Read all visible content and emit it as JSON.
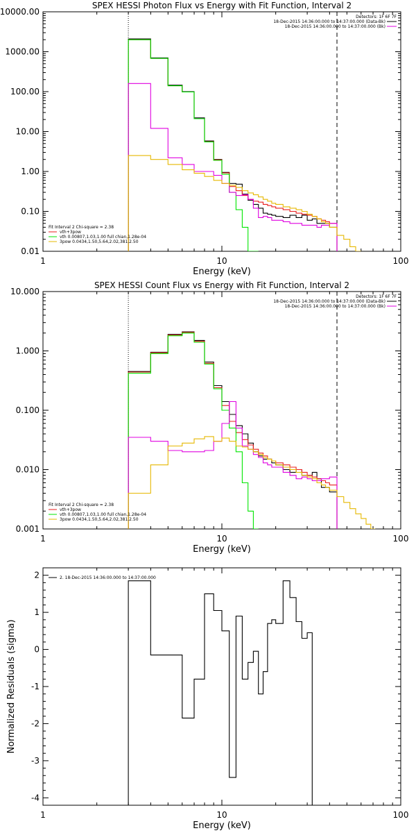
{
  "chart_data": [
    {
      "type": "line",
      "title": "SPEX HESSI Photon Flux vs Energy with Fit Function, Interval 2",
      "xlabel": "Energy (keV)",
      "ylabel": "",
      "xscale": "log",
      "yscale": "log",
      "xlim": [
        1,
        100
      ],
      "ylim": [
        0.01,
        10000
      ],
      "xticks": [
        "1",
        "10",
        "100"
      ],
      "yticks": [
        "0.01",
        "0.10",
        "1.00",
        "10.00",
        "100.00",
        "1000.00",
        "10000.00"
      ],
      "vlines": [
        3,
        44
      ],
      "legend_right": [
        "Detectors: 1F 6F 7F",
        "18-Dec-2015 14:36:00.000 to 14:37:00.000 (Data-Bk)",
        "18-Dec-2015 14:36:00.000 to 14:37:00.000 (Bk)"
      ],
      "legend_left": [
        "Fit Interval 2   Chi-square = 2.38",
        "vth+3pow",
        "vth 0.00807,1.03,1.00  full chian,1.28e-04",
        "3pow 0.0434,1.50,5.64,2.02,381.2.50"
      ],
      "edges": [
        3,
        4,
        5,
        6,
        7,
        8,
        9,
        10,
        11,
        12,
        13,
        14,
        15,
        16,
        17,
        18,
        19,
        20,
        22,
        24,
        26,
        28,
        30,
        32,
        34,
        36,
        38,
        40,
        44,
        48,
        52,
        56,
        60
      ],
      "series": [
        {
          "color": "#000000",
          "values": [
            2100,
            700,
            145,
            100,
            22,
            5.8,
            2,
            0.95,
            0.5,
            0.48,
            0.27,
            0.19,
            0.15,
            0.12,
            0.09,
            0.085,
            0.08,
            0.075,
            0.07,
            0.08,
            0.07,
            0.08,
            0.06,
            0.065,
            0.05,
            0.05,
            0.05,
            0.04
          ]
        },
        {
          "color": "#e81c1c",
          "values": [
            2000,
            680,
            140,
            98,
            21,
            5.6,
            1.95,
            0.92,
            0.42,
            0.33,
            0.25,
            0.2,
            0.18,
            0.17,
            0.15,
            0.14,
            0.13,
            0.12,
            0.11,
            0.1,
            0.09,
            0.085,
            0.08,
            0.075,
            0.065,
            0.06,
            0.055,
            0.05
          ]
        },
        {
          "color": "#00e600",
          "values": [
            2000,
            680,
            140,
            98,
            21,
            5.5,
            1.9,
            0.85,
            0.3,
            0.11,
            0.04,
            0.01,
            0.002
          ]
        },
        {
          "color": "#e000e0",
          "values": [
            160,
            12,
            2.2,
            1.5,
            1.0,
            1.0,
            0.8,
            0.5,
            0.3,
            0.25,
            0.26,
            0.2,
            0.12,
            0.07,
            0.075,
            0.07,
            0.06,
            0.06,
            0.055,
            0.05,
            0.05,
            0.045,
            0.045,
            0.045,
            0.04,
            0.045,
            0.045,
            0.05
          ]
        },
        {
          "color": "#e6b800",
          "values": [
            2.5,
            2.0,
            1.5,
            1.1,
            0.9,
            0.75,
            0.6,
            0.5,
            0.45,
            0.4,
            0.33,
            0.29,
            0.26,
            0.23,
            0.2,
            0.18,
            0.16,
            0.15,
            0.13,
            0.12,
            0.11,
            0.1,
            0.085,
            0.075,
            0.065,
            0.055,
            0.05,
            0.04,
            0.025,
            0.02,
            0.013,
            0.01
          ]
        }
      ]
    },
    {
      "type": "line",
      "title": "SPEX HESSI Count Flux vs Energy with Fit Function, Interval 2",
      "xlabel": "Energy (keV)",
      "ylabel": "",
      "xscale": "log",
      "yscale": "log",
      "xlim": [
        1,
        100
      ],
      "ylim": [
        0.001,
        10
      ],
      "xticks": [
        "1",
        "10",
        "100"
      ],
      "yticks": [
        "0.001",
        "0.010",
        "0.100",
        "1.000",
        "10.000"
      ],
      "vlines": [
        3,
        44
      ],
      "legend_right": [
        "Detectors: 1F 6F 7F",
        "18-Dec-2015 14:36:00.000 to 14:37:00.000 (Data-Bk)",
        "18-Dec-2015 14:36:00.000 to 14:37:00.000 (Bk)"
      ],
      "legend_left": [
        "Fit Interval 2   Chi-square = 2.38",
        "vth+3pow",
        "vth 0.00807,1.03,1.00  full chian,1.28e-04",
        "3pow 0.0434,1.50,5.64,2.02,381.2.50"
      ],
      "edges": [
        3,
        4,
        5,
        6,
        7,
        8,
        9,
        10,
        11,
        12,
        13,
        14,
        15,
        16,
        17,
        18,
        19,
        20,
        22,
        24,
        26,
        28,
        30,
        32,
        34,
        36,
        38,
        40,
        44,
        48,
        52,
        56,
        60,
        64,
        68,
        72,
        76,
        80,
        84
      ],
      "series": [
        {
          "color": "#000000",
          "values": [
            0.45,
            0.95,
            1.9,
            2.1,
            1.5,
            0.65,
            0.26,
            0.14,
            0.085,
            0.055,
            0.04,
            0.028,
            0.02,
            0.017,
            0.015,
            0.015,
            0.013,
            0.012,
            0.01,
            0.009,
            0.01,
            0.008,
            0.008,
            0.009,
            0.007,
            0.005,
            0.005,
            0.0042
          ]
        },
        {
          "color": "#e81c1c",
          "values": [
            0.44,
            0.93,
            1.85,
            2.05,
            1.45,
            0.62,
            0.24,
            0.12,
            0.065,
            0.042,
            0.032,
            0.026,
            0.022,
            0.019,
            0.017,
            0.015,
            0.014,
            0.013,
            0.012,
            0.011,
            0.01,
            0.009,
            0.008,
            0.0075,
            0.007,
            0.0065,
            0.006,
            0.0055
          ]
        },
        {
          "color": "#00e600",
          "values": [
            0.42,
            0.9,
            1.8,
            2.0,
            1.4,
            0.6,
            0.23,
            0.1,
            0.05,
            0.02,
            0.006,
            0.002,
            0.0007
          ]
        },
        {
          "color": "#e000e0",
          "values": [
            0.035,
            0.03,
            0.021,
            0.02,
            0.02,
            0.021,
            0.03,
            0.06,
            0.14,
            0.05,
            0.025,
            0.022,
            0.018,
            0.016,
            0.013,
            0.012,
            0.011,
            0.011,
            0.009,
            0.008,
            0.007,
            0.0075,
            0.007,
            0.0065,
            0.0065,
            0.007,
            0.007,
            0.0075
          ]
        },
        {
          "color": "#e6b800",
          "values": [
            0.004,
            0.012,
            0.025,
            0.028,
            0.033,
            0.036,
            0.03,
            0.034,
            0.03,
            0.025,
            0.024,
            0.022,
            0.02,
            0.018,
            0.016,
            0.015,
            0.014,
            0.012,
            0.011,
            0.01,
            0.009,
            0.008,
            0.0075,
            0.007,
            0.006,
            0.0055,
            0.005,
            0.0045,
            0.0035,
            0.0028,
            0.0022,
            0.0018,
            0.0015,
            0.0012,
            0.001
          ]
        }
      ]
    },
    {
      "type": "line",
      "title": "",
      "xlabel": "Energy (keV)",
      "ylabel": "Normalized Residuals (sigma)",
      "xscale": "log",
      "yscale": "linear",
      "xlim": [
        1,
        100
      ],
      "ylim": [
        -4.2,
        2.2
      ],
      "xticks": [
        "1",
        "10",
        "100"
      ],
      "yticks": [
        "-4",
        "-3",
        "-2",
        "-1",
        "0",
        "1",
        "2"
      ],
      "legend_left": [
        "2. 18-Dec-2015 14:36:00.000 to 14:37:00.000"
      ],
      "edges": [
        3,
        4,
        5,
        6,
        7,
        8,
        9,
        10,
        11,
        12,
        13,
        14,
        15,
        16,
        17,
        18,
        19,
        20,
        22,
        24,
        26,
        28,
        30,
        32,
        34,
        36,
        38,
        40,
        44
      ],
      "series": [
        {
          "color": "#000000",
          "values": [
            1.85,
            -0.15,
            -0.15,
            -1.85,
            -0.8,
            1.5,
            1.05,
            0.5,
            -3.45,
            0.9,
            -0.8,
            -0.35,
            -0.05,
            -1.2,
            -0.6,
            0.7,
            0.8,
            0.7,
            1.85,
            1.4,
            0.75,
            0.3,
            0.45
          ]
        }
      ]
    }
  ]
}
